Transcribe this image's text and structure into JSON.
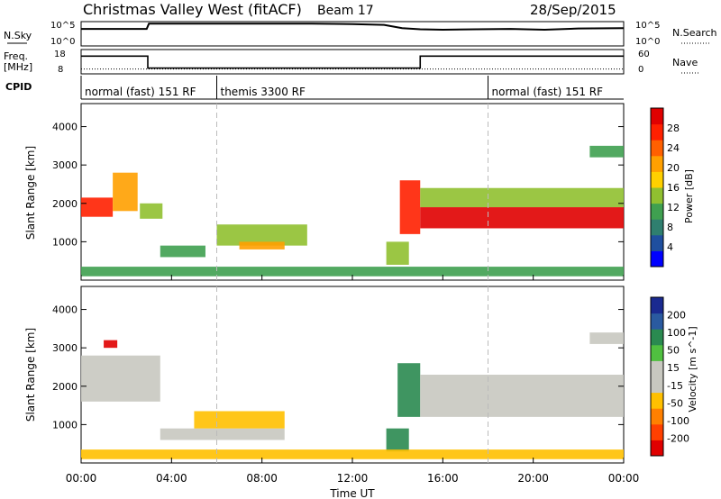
{
  "header": {
    "station": "Christmas Valley West (fitACF)",
    "beam": "Beam 17",
    "date": "28/Sep/2015"
  },
  "nsky_panel": {
    "left_label": "N.Sky",
    "right_label": "N.Search",
    "left_ticks": [
      "10^5",
      "10^0"
    ],
    "right_ticks": [
      "10^5",
      "10^0"
    ]
  },
  "freq_panel": {
    "left_label_1": "Freq.",
    "left_label_2": "[MHz]",
    "right_label": "Nave",
    "left_ticks": [
      "18",
      "8"
    ],
    "right_ticks": [
      "60",
      "0"
    ]
  },
  "cpid": {
    "label": "CPID",
    "modes": [
      {
        "name": "normal (fast) 151 RF",
        "start_hour": 0
      },
      {
        "name": "themis 3300 RF",
        "start_hour": 6
      },
      {
        "name": "normal (fast) 151 RF",
        "start_hour": 18
      }
    ]
  },
  "x_axis": {
    "label": "Time UT",
    "ticks": [
      "00:00",
      "04:00",
      "08:00",
      "12:00",
      "16:00",
      "20:00",
      "00:00"
    ]
  },
  "colors": {
    "power_scale": [
      "#0000ff",
      "#1f4f9f",
      "#2f7f6f",
      "#3fa050",
      "#90c030",
      "#ffd000",
      "#ffa000",
      "#ff6000",
      "#ff2000",
      "#e00000"
    ],
    "velocity_scale": [
      "#e00000",
      "#ff4000",
      "#ff8000",
      "#ffc000",
      "#c8c8c0",
      "#c8c8c0",
      "#50c040",
      "#2a8a50",
      "#2a5aa0",
      "#1a2a90"
    ]
  },
  "chart_data": [
    {
      "type": "line",
      "title": "N.Sky / N.Search",
      "series": [
        {
          "name": "N.Sky",
          "x": [
            0,
            2.9,
            3.0,
            10.2,
            12,
            13.4,
            14.2,
            15,
            16,
            17.5,
            19,
            20.5,
            22,
            24
          ],
          "values": [
            4.2,
            4.2,
            5.5,
            5.5,
            5.4,
            5.2,
            4.4,
            4.1,
            4.0,
            4.1,
            4.2,
            4.0,
            4.3,
            4.4
          ]
        }
      ],
      "ylim": [
        0,
        6
      ]
    },
    {
      "type": "line",
      "title": "Frequency / Nave",
      "series": [
        {
          "name": "Freq",
          "x": [
            0,
            2.95,
            2.95,
            15.0,
            15.0,
            24
          ],
          "values": [
            15.3,
            15.3,
            10.4,
            10.4,
            15.3,
            15.3
          ]
        },
        {
          "name": "Nave",
          "x": [
            0,
            24
          ],
          "values": [
            10,
            10
          ]
        }
      ],
      "ylim": [
        8,
        18
      ]
    },
    {
      "type": "heatmap",
      "ylabel": "Slant Range [km]",
      "yticks": [
        "1000",
        "2000",
        "3000",
        "4000"
      ],
      "ylim": [
        0,
        4600
      ],
      "xlim": [
        0,
        24
      ],
      "colorbar": {
        "label": "Power [dB]",
        "ticks": [
          "4",
          "8",
          "12",
          "16",
          "20",
          "24",
          "28"
        ]
      },
      "regions": [
        {
          "t0": 0.0,
          "t1": 1.4,
          "r0": 1650,
          "r1": 2150,
          "value": 25
        },
        {
          "t0": 1.4,
          "t1": 2.5,
          "r0": 1800,
          "r1": 2800,
          "value": 20
        },
        {
          "t0": 2.6,
          "t1": 3.6,
          "r0": 1600,
          "r1": 2000,
          "value": 14
        },
        {
          "t0": 3.5,
          "t1": 5.5,
          "r0": 600,
          "r1": 900,
          "value": 10
        },
        {
          "t0": 6.0,
          "t1": 10.0,
          "r0": 900,
          "r1": 1450,
          "value": 14
        },
        {
          "t0": 7.0,
          "t1": 9.0,
          "r0": 800,
          "r1": 1000,
          "value": 20
        },
        {
          "t0": 13.5,
          "t1": 14.5,
          "r0": 400,
          "r1": 1000,
          "value": 12
        },
        {
          "t0": 14.1,
          "t1": 15.0,
          "r0": 1200,
          "r1": 2600,
          "value": 24
        },
        {
          "t0": 15.0,
          "t1": 24.0,
          "r0": 1350,
          "r1": 1900,
          "value": 27
        },
        {
          "t0": 15.0,
          "t1": 24.0,
          "r0": 1900,
          "r1": 2400,
          "value": 12
        },
        {
          "t0": 22.5,
          "t1": 24.0,
          "r0": 3200,
          "r1": 3500,
          "value": 10
        },
        {
          "t0": 0.0,
          "t1": 24.0,
          "r0": 100,
          "r1": 350,
          "value": 10
        }
      ]
    },
    {
      "type": "heatmap",
      "ylabel": "Slant Range [km]",
      "xlabel": "Time UT",
      "yticks": [
        "1000",
        "2000",
        "3000",
        "4000"
      ],
      "ylim": [
        0,
        4600
      ],
      "xlim": [
        0,
        24
      ],
      "colorbar": {
        "label": "Velocity [m s^-1]",
        "ticks": [
          "-200",
          "-100",
          "-50",
          "-15",
          "15",
          "50",
          "100",
          "200"
        ]
      },
      "regions": [
        {
          "t0": 0.0,
          "t1": 3.5,
          "r0": 1600,
          "r1": 2800,
          "value": 0
        },
        {
          "t0": 3.5,
          "t1": 9.0,
          "r0": 600,
          "r1": 900,
          "value": 0
        },
        {
          "t0": 5.0,
          "t1": 9.0,
          "r0": 900,
          "r1": 1350,
          "value": -40
        },
        {
          "t0": 13.5,
          "t1": 14.5,
          "r0": 300,
          "r1": 900,
          "value": 60
        },
        {
          "t0": 14.0,
          "t1": 15.0,
          "r0": 1200,
          "r1": 2600,
          "value": 60
        },
        {
          "t0": 15.0,
          "t1": 24.0,
          "r0": 1200,
          "r1": 2300,
          "value": 0
        },
        {
          "t0": 22.5,
          "t1": 24.0,
          "r0": 3100,
          "r1": 3400,
          "value": 0
        },
        {
          "t0": 1.0,
          "t1": 1.6,
          "r0": 3000,
          "r1": 3200,
          "value": -220
        },
        {
          "t0": 0.0,
          "t1": 24.0,
          "r0": 100,
          "r1": 350,
          "value": -20
        }
      ]
    }
  ]
}
